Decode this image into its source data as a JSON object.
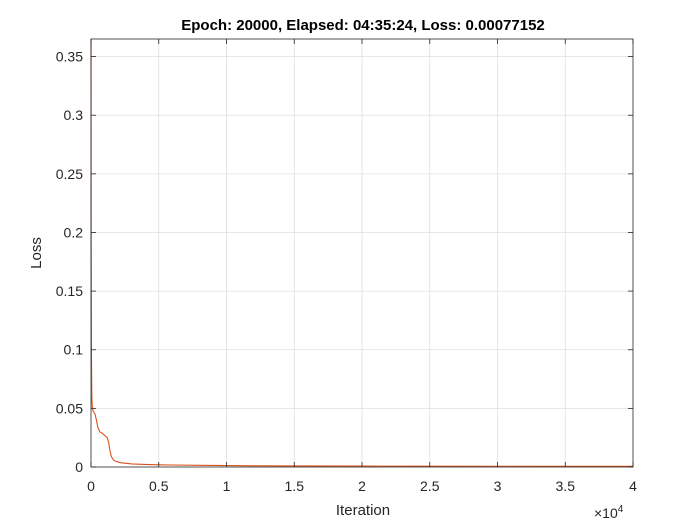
{
  "chart_data": {
    "type": "line",
    "title": "Epoch: 20000, Elapsed: 04:35:24, Loss: 0.00077152",
    "xlabel": "Iteration",
    "ylabel": "Loss",
    "xlim": [
      0,
      40000
    ],
    "ylim": [
      0,
      0.365
    ],
    "x_exponent_label": "×10",
    "x_exponent_power": "4",
    "xticks": [
      0,
      5000,
      10000,
      15000,
      20000,
      25000,
      30000,
      35000,
      40000
    ],
    "xtick_labels": [
      "0",
      "0.5",
      "1",
      "1.5",
      "2",
      "2.5",
      "3",
      "3.5",
      "4"
    ],
    "yticks": [
      0,
      0.05,
      0.1,
      0.15,
      0.2,
      0.25,
      0.3,
      0.35
    ],
    "ytick_labels": [
      "0",
      "0.05",
      "0.1",
      "0.15",
      "0.2",
      "0.25",
      "0.3",
      "0.35"
    ],
    "grid": true,
    "line_color": "#D95319",
    "series": [
      {
        "x": [
          0,
          10,
          30,
          60,
          100,
          150,
          200,
          300,
          400,
          500,
          650,
          800,
          1000,
          1100,
          1200,
          1300,
          1400,
          1500,
          1600,
          1700,
          1800,
          2000,
          2300,
          2700,
          3000,
          4000,
          5000,
          6000,
          8000,
          10000,
          12000,
          15000,
          20000,
          25000,
          30000,
          35000,
          40000
        ],
        "y": [
          0.365,
          0.2,
          0.1,
          0.06,
          0.05,
          0.048,
          0.047,
          0.045,
          0.04,
          0.034,
          0.03,
          0.029,
          0.027,
          0.026,
          0.025,
          0.021,
          0.014,
          0.009,
          0.007,
          0.0055,
          0.005,
          0.0042,
          0.0035,
          0.003,
          0.0026,
          0.0022,
          0.0019,
          0.0017,
          0.0014,
          0.0012,
          0.001,
          0.0009,
          0.00077,
          0.0007,
          0.00065,
          0.0006,
          0.00055
        ]
      }
    ]
  }
}
